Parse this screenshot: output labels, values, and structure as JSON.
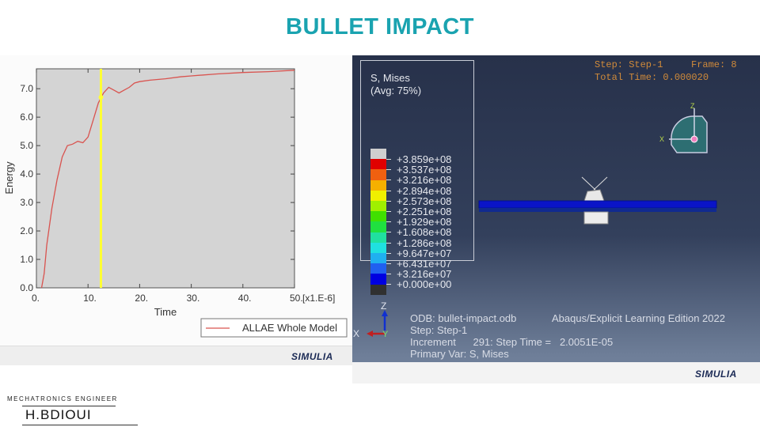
{
  "title": "BULLET IMPACT",
  "footer": {
    "role": "MECHATRONICS ENGINEER",
    "name": "H.BDIOUI"
  },
  "brand": "SIMULIA",
  "chart_data": {
    "type": "line",
    "xlabel": "Time",
    "ylabel": "Energy",
    "x_unit": "[x1.E-6]",
    "xlim": [
      0,
      50
    ],
    "ylim": [
      0,
      7.7
    ],
    "xticks": [
      "0.",
      "10.",
      "20.",
      "30.",
      "40.",
      "50."
    ],
    "yticks": [
      "0.0",
      "1.0",
      "2.0",
      "3.0",
      "4.0",
      "5.0",
      "6.0",
      "7.0"
    ],
    "legend_position": "bottom-right",
    "series": [
      {
        "name": "ALLAE Whole Model",
        "color": "#d9534f",
        "x": [
          1,
          1.5,
          2,
          3,
          4,
          5,
          6,
          7,
          8,
          9,
          10,
          11,
          12,
          13,
          14,
          15,
          16,
          17,
          18,
          19,
          20,
          22,
          25,
          28,
          30,
          35,
          40,
          45,
          50
        ],
        "y": [
          0,
          0.5,
          1.5,
          2.8,
          3.8,
          4.6,
          5.0,
          5.05,
          5.15,
          5.1,
          5.3,
          5.9,
          6.5,
          6.85,
          7.05,
          6.95,
          6.85,
          6.95,
          7.05,
          7.2,
          7.25,
          7.3,
          7.35,
          7.42,
          7.45,
          7.52,
          7.57,
          7.6,
          7.65
        ]
      }
    ],
    "cursor": {
      "x": 12.5,
      "y": 6.7,
      "color": "#ffff33"
    },
    "background": "#d4d4d4"
  },
  "viewer": {
    "legend_title": "S, Mises",
    "legend_avg": "(Avg: 75%)",
    "values": [
      "+3.859e+08",
      "+3.537e+08",
      "+3.216e+08",
      "+2.894e+08",
      "+2.573e+08",
      "+2.251e+08",
      "+1.929e+08",
      "+1.608e+08",
      "+1.286e+08",
      "+9.647e+07",
      "+6.431e+07",
      "+3.216e+07",
      "+0.000e+00"
    ],
    "colors": [
      "#cfcfcf",
      "#e00000",
      "#f06010",
      "#f5b000",
      "#f0f000",
      "#a0f000",
      "#40e000",
      "#20e040",
      "#20e0a0",
      "#20e0e0",
      "#20b0f0",
      "#2060f0",
      "#0000e0",
      "#303030"
    ],
    "step_label": "Step: Step-1",
    "frame_label": "Frame: 8",
    "total_time": "Total Time: 0.000020",
    "odb": "ODB: bullet-impact.odb",
    "edition": "Abaqus/Explicit Learning Edition 2022",
    "step": "Step: Step-1",
    "increment": "Increment      291: Step Time =   2.0051E-05",
    "primary_var": "Primary Var: S, Mises",
    "axes": {
      "z": "Z",
      "x": "X",
      "y": "Y"
    }
  }
}
